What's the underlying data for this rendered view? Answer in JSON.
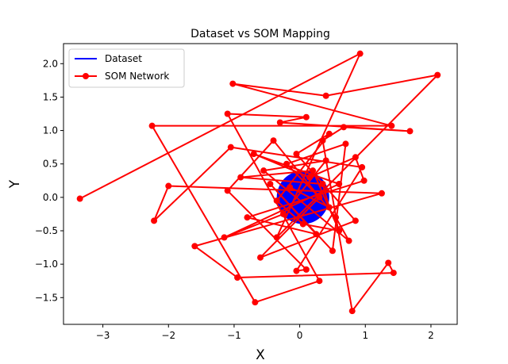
{
  "chart_data": {
    "type": "line",
    "title": "Dataset vs SOM Mapping",
    "xlabel": "X",
    "ylabel": "Y",
    "xlim": [
      -3.6,
      2.4
    ],
    "ylim": [
      -1.9,
      2.3
    ],
    "xticks": [
      -3,
      -2,
      -1,
      0,
      1,
      2
    ],
    "yticks": [
      -1.5,
      -1.0,
      -0.5,
      0.0,
      0.5,
      1.0,
      1.5,
      2.0
    ],
    "xtick_labels": [
      "−3",
      "−2",
      "−1",
      "0",
      "1",
      "2"
    ],
    "ytick_labels": [
      "−1.5",
      "−1.0",
      "−0.5",
      "0.0",
      "0.5",
      "1.0",
      "1.5",
      "2.0"
    ],
    "grid": false,
    "legend_position": "top-left",
    "series": [
      {
        "name": "Dataset",
        "color": "#0000ff",
        "kind": "filled-disk",
        "center": [
          0.05,
          0.0
        ],
        "radius": 0.4
      },
      {
        "name": "SOM Network",
        "color": "#ff0000",
        "marker": "circle",
        "points": [
          [
            -3.35,
            -0.02
          ],
          [
            0.92,
            2.15
          ],
          [
            -0.35,
            -0.6
          ],
          [
            2.1,
            1.83
          ],
          [
            0.4,
            1.52
          ],
          [
            -1.02,
            1.7
          ],
          [
            1.4,
            1.07
          ],
          [
            -2.25,
            1.07
          ],
          [
            -0.68,
            -1.57
          ],
          [
            0.3,
            -1.25
          ],
          [
            -1.1,
            1.25
          ],
          [
            0.1,
            1.2
          ],
          [
            -0.3,
            1.12
          ],
          [
            1.68,
            0.99
          ],
          [
            0.67,
            1.05
          ],
          [
            0.35,
            0.85
          ],
          [
            0.8,
            -1.7
          ],
          [
            1.35,
            -0.98
          ],
          [
            1.43,
            -1.13
          ],
          [
            -0.95,
            -1.2
          ],
          [
            -1.6,
            -0.73
          ],
          [
            1.25,
            0.06
          ],
          [
            -2.0,
            0.17
          ],
          [
            -2.22,
            -0.35
          ],
          [
            -1.05,
            0.75
          ],
          [
            0.95,
            0.45
          ],
          [
            -0.05,
            -1.1
          ],
          [
            0.1,
            -1.08
          ],
          [
            -1.1,
            0.1
          ],
          [
            -0.4,
            0.85
          ],
          [
            0.55,
            -0.3
          ],
          [
            0.75,
            -0.65
          ],
          [
            -0.55,
            0.4
          ],
          [
            0.4,
            0.55
          ],
          [
            -0.25,
            -0.25
          ],
          [
            -1.15,
            -0.6
          ],
          [
            0.6,
            0.2
          ],
          [
            -0.7,
            0.65
          ],
          [
            0.15,
            0.3
          ],
          [
            0.85,
            0.6
          ],
          [
            0.98,
            0.25
          ],
          [
            -0.8,
            -0.3
          ],
          [
            0.25,
            -0.55
          ],
          [
            -0.45,
            0.2
          ],
          [
            0.5,
            -0.8
          ],
          [
            0.7,
            0.8
          ],
          [
            -0.2,
            0.5
          ],
          [
            0.3,
            0.0
          ],
          [
            -0.6,
            -0.9
          ],
          [
            0.85,
            -0.35
          ],
          [
            -0.05,
            0.65
          ],
          [
            0.45,
            0.95
          ],
          [
            -0.35,
            -0.05
          ],
          [
            0.05,
            -0.4
          ],
          [
            0.6,
            -0.5
          ],
          [
            0.2,
            0.4
          ],
          [
            -0.9,
            0.3
          ],
          [
            0.35,
            0.2
          ],
          [
            0.45,
            -0.15
          ],
          [
            -0.15,
            0.15
          ]
        ]
      }
    ]
  },
  "legend": {
    "dataset_label": "Dataset",
    "som_label": "SOM Network"
  },
  "style": {
    "dataset_color": "#0000ff",
    "som_color": "#ff0000"
  }
}
